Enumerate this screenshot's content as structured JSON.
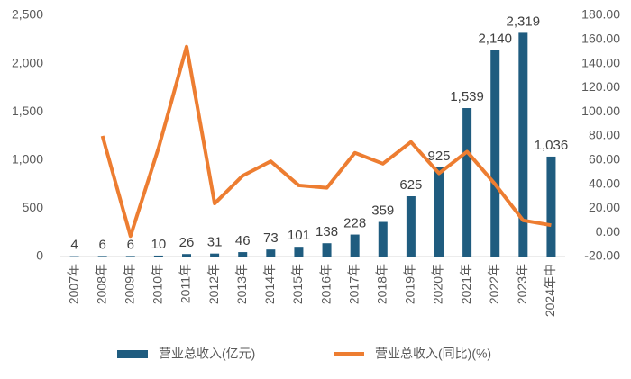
{
  "chart_data": {
    "type": "bar",
    "categories": [
      "2007年",
      "2008年",
      "2009年",
      "2010年",
      "2011年",
      "2012年",
      "2013年",
      "2014年",
      "2015年",
      "2016年",
      "2017年",
      "2018年",
      "2019年",
      "2020年",
      "2021年",
      "2022年",
      "2023年",
      "2024年中"
    ],
    "series": [
      {
        "name": "营业总收入(亿元)",
        "type": "bar",
        "color": "#1f5c7f",
        "values": [
          4,
          6,
          6,
          10,
          26,
          31,
          46,
          73,
          101,
          138,
          228,
          359,
          625,
          925,
          1539,
          2140,
          2319,
          1036
        ],
        "value_labels": [
          "4",
          "6",
          "6",
          "10",
          "26",
          "31",
          "46",
          "73",
          "101",
          "138",
          "228",
          "359",
          "625",
          "925",
          "1,539",
          "2,140",
          "2,319",
          "1,036"
        ]
      },
      {
        "name": "营业总收入(同比)(%)",
        "type": "line",
        "axis": "y2",
        "color": "#ed7d31",
        "values": [
          null,
          80,
          -3,
          70,
          154,
          24,
          47,
          59,
          39,
          37,
          66,
          57,
          75,
          49,
          67,
          40,
          10,
          6
        ]
      }
    ],
    "ylim": [
      0,
      2500
    ],
    "yticks": [
      0,
      500,
      {
        "value": 1000,
        "label": "1,000"
      },
      {
        "value": 1500,
        "label": "1,500"
      },
      {
        "value": 2000,
        "label": "2,000"
      },
      {
        "value": 2500,
        "label": "2,500"
      }
    ],
    "y2lim": [
      -20,
      180
    ],
    "y2ticks": [
      {
        "value": -20,
        "label": "-20.00"
      },
      {
        "value": 0,
        "label": "0.00"
      },
      {
        "value": 20,
        "label": "20.00"
      },
      {
        "value": 40,
        "label": "40.00"
      },
      {
        "value": 60,
        "label": "60.00"
      },
      {
        "value": 80,
        "label": "80.00"
      },
      {
        "value": 100,
        "label": "100.00"
      },
      {
        "value": 120,
        "label": "120.00"
      },
      {
        "value": 140,
        "label": "140.00"
      },
      {
        "value": 160,
        "label": "160.00"
      },
      {
        "value": 180,
        "label": "180.00"
      }
    ],
    "legend": "bottom"
  }
}
